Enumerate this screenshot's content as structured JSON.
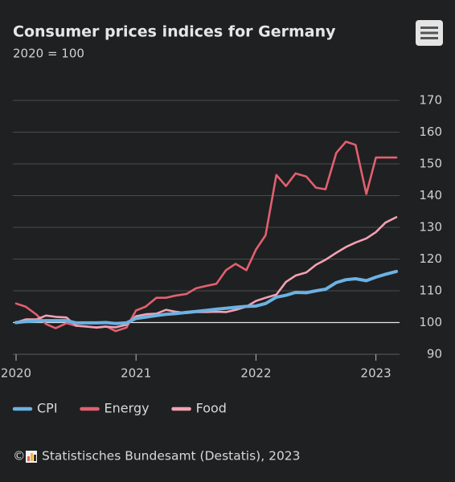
{
  "chart_data": {
    "type": "line",
    "title": "Consumer prices indices for Germany",
    "subtitle": "2020 = 100",
    "source": "Statistisches Bundesamt (Destatis), 2023",
    "x": [
      2020.0,
      2020.08,
      2020.17,
      2020.25,
      2020.33,
      2020.42,
      2020.5,
      2020.58,
      2020.67,
      2020.75,
      2020.83,
      2020.92,
      2021.0,
      2021.08,
      2021.17,
      2021.25,
      2021.33,
      2021.42,
      2021.5,
      2021.58,
      2021.67,
      2021.75,
      2021.83,
      2021.92,
      2022.0,
      2022.08,
      2022.17,
      2022.25,
      2022.33,
      2022.42,
      2022.5,
      2022.58,
      2022.67,
      2022.75,
      2022.83,
      2022.92,
      2023.0,
      2023.08,
      2023.17
    ],
    "series": [
      {
        "name": "CPI",
        "color": "#6cb2e4",
        "values": [
          100,
          100.3,
          100.5,
          100.6,
          100.6,
          100.6,
          99.9,
          99.9,
          99.9,
          100,
          99.7,
          99.9,
          101.3,
          101.7,
          102.2,
          102.6,
          102.8,
          103.2,
          103.5,
          103.8,
          104.2,
          104.5,
          104.8,
          105.1,
          105.2,
          106,
          108,
          108.6,
          109.5,
          109.4,
          110,
          110.5,
          112.6,
          113.5,
          113.8,
          113.2,
          114.3,
          115.2,
          116.1
        ]
      },
      {
        "name": "Energy",
        "color": "#e2606f",
        "values": [
          106,
          105,
          102.5,
          99.5,
          98.2,
          99.8,
          99,
          98.7,
          98.5,
          98.8,
          97.3,
          98.4,
          103.8,
          105,
          107.8,
          107.8,
          108.5,
          109,
          110.8,
          111.5,
          112.2,
          116.5,
          118.5,
          116.5,
          123,
          127.5,
          146.5,
          143,
          147,
          146,
          142.5,
          142,
          153.5,
          157,
          156,
          140.5,
          152,
          152,
          152
        ]
      },
      {
        "name": "Food",
        "color": "#f2a2b2",
        "values": [
          100,
          101,
          101,
          102.2,
          101.8,
          101.6,
          99,
          98.8,
          98.4,
          98.7,
          98.5,
          99.3,
          102,
          102.6,
          102.8,
          104,
          103.4,
          103,
          103.3,
          103.3,
          103.4,
          103.3,
          104,
          105,
          106.8,
          107.8,
          108.8,
          112.8,
          114.8,
          115.8,
          118.2,
          119.8,
          122,
          123.8,
          125.2,
          126.5,
          128.5,
          131.5,
          133.2
        ]
      }
    ],
    "xlim": [
      2020,
      2023.17
    ],
    "xticks": [
      2020,
      2021,
      2022,
      2023
    ],
    "ylim": [
      90,
      170
    ],
    "yticks": [
      90,
      100,
      110,
      120,
      130,
      140,
      150,
      160,
      170
    ],
    "grid": true,
    "baseline": 100
  }
}
